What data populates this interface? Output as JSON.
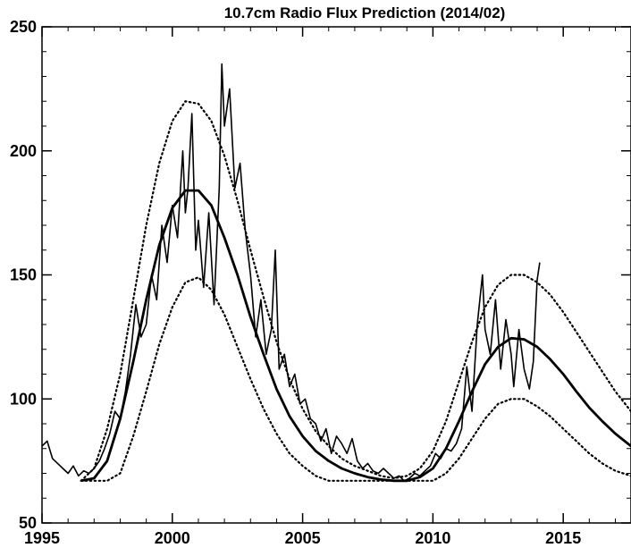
{
  "chart_data": {
    "type": "line",
    "title": "10.7cm Radio Flux Prediction (2014/02)",
    "xlabel": "",
    "ylabel": "",
    "xlim": [
      1995,
      2017.6
    ],
    "ylim": [
      50,
      250
    ],
    "x_ticks": [
      1995,
      2000,
      2005,
      2010,
      2015
    ],
    "y_ticks": [
      50,
      100,
      150,
      200,
      250
    ],
    "x_minor_step": 1,
    "y_minor_step": 10,
    "grid": false,
    "legend": "none",
    "series": [
      {
        "style": "solid-thin",
        "note": "observed monthly values",
        "points": [
          [
            1995.0,
            81
          ],
          [
            1995.2,
            83
          ],
          [
            1995.4,
            76
          ],
          [
            1995.6,
            74
          ],
          [
            1995.8,
            72
          ],
          [
            1996.0,
            70
          ],
          [
            1996.2,
            73
          ],
          [
            1996.4,
            69
          ],
          [
            1996.6,
            71
          ],
          [
            1996.8,
            70
          ],
          [
            1997.0,
            72
          ],
          [
            1997.2,
            75
          ],
          [
            1997.4,
            80
          ],
          [
            1997.6,
            86
          ],
          [
            1997.8,
            95
          ],
          [
            1998.0,
            92
          ],
          [
            1998.2,
            103
          ],
          [
            1998.4,
            118
          ],
          [
            1998.6,
            138
          ],
          [
            1998.8,
            125
          ],
          [
            1999.0,
            130
          ],
          [
            1999.2,
            150
          ],
          [
            1999.4,
            140
          ],
          [
            1999.6,
            170
          ],
          [
            1999.8,
            155
          ],
          [
            2000.0,
            178
          ],
          [
            2000.2,
            165
          ],
          [
            2000.4,
            200
          ],
          [
            2000.5,
            175
          ],
          [
            2000.6,
            185
          ],
          [
            2000.75,
            215
          ],
          [
            2000.9,
            160
          ],
          [
            2001.0,
            172
          ],
          [
            2001.2,
            145
          ],
          [
            2001.4,
            175
          ],
          [
            2001.6,
            138
          ],
          [
            2001.8,
            185
          ],
          [
            2001.9,
            235
          ],
          [
            2002.0,
            210
          ],
          [
            2002.2,
            225
          ],
          [
            2002.4,
            185
          ],
          [
            2002.6,
            195
          ],
          [
            2002.8,
            168
          ],
          [
            2003.0,
            150
          ],
          [
            2003.2,
            125
          ],
          [
            2003.4,
            140
          ],
          [
            2003.6,
            118
          ],
          [
            2003.8,
            128
          ],
          [
            2003.95,
            160
          ],
          [
            2004.1,
            112
          ],
          [
            2004.3,
            118
          ],
          [
            2004.5,
            105
          ],
          [
            2004.7,
            110
          ],
          [
            2004.9,
            98
          ],
          [
            2005.1,
            100
          ],
          [
            2005.3,
            92
          ],
          [
            2005.5,
            90
          ],
          [
            2005.7,
            83
          ],
          [
            2005.9,
            88
          ],
          [
            2006.1,
            78
          ],
          [
            2006.3,
            85
          ],
          [
            2006.5,
            82
          ],
          [
            2006.7,
            78
          ],
          [
            2006.9,
            84
          ],
          [
            2007.1,
            75
          ],
          [
            2007.3,
            72
          ],
          [
            2007.5,
            74
          ],
          [
            2007.7,
            71
          ],
          [
            2007.9,
            70
          ],
          [
            2008.1,
            72
          ],
          [
            2008.3,
            70
          ],
          [
            2008.5,
            68
          ],
          [
            2008.7,
            69
          ],
          [
            2008.9,
            67
          ],
          [
            2009.1,
            68
          ],
          [
            2009.3,
            70
          ],
          [
            2009.5,
            69
          ],
          [
            2009.7,
            71
          ],
          [
            2009.9,
            73
          ],
          [
            2010.1,
            78
          ],
          [
            2010.3,
            76
          ],
          [
            2010.5,
            80
          ],
          [
            2010.7,
            79
          ],
          [
            2010.9,
            82
          ],
          [
            2011.1,
            88
          ],
          [
            2011.3,
            113
          ],
          [
            2011.5,
            95
          ],
          [
            2011.7,
            130
          ],
          [
            2011.9,
            150
          ],
          [
            2012.0,
            128
          ],
          [
            2012.2,
            118
          ],
          [
            2012.4,
            140
          ],
          [
            2012.6,
            112
          ],
          [
            2012.8,
            132
          ],
          [
            2013.0,
            118
          ],
          [
            2013.1,
            105
          ],
          [
            2013.3,
            128
          ],
          [
            2013.5,
            112
          ],
          [
            2013.7,
            104
          ],
          [
            2013.85,
            115
          ],
          [
            2014.0,
            148
          ],
          [
            2014.1,
            155
          ]
        ]
      },
      {
        "style": "solid-thick",
        "note": "predicted smoothed curve",
        "points": [
          [
            1996.5,
            67
          ],
          [
            1997.0,
            68
          ],
          [
            1997.5,
            75
          ],
          [
            1998.0,
            92
          ],
          [
            1998.5,
            115
          ],
          [
            1999.0,
            140
          ],
          [
            1999.5,
            162
          ],
          [
            2000.0,
            177
          ],
          [
            2000.5,
            184
          ],
          [
            2001.0,
            184
          ],
          [
            2001.5,
            178
          ],
          [
            2002.0,
            165
          ],
          [
            2002.5,
            150
          ],
          [
            2003.0,
            133
          ],
          [
            2003.5,
            118
          ],
          [
            2004.0,
            104
          ],
          [
            2004.5,
            93
          ],
          [
            2005.0,
            85
          ],
          [
            2005.5,
            79
          ],
          [
            2006.0,
            75
          ],
          [
            2006.5,
            72
          ],
          [
            2007.0,
            70
          ],
          [
            2007.5,
            68.5
          ],
          [
            2008.0,
            67.5
          ],
          [
            2008.5,
            67
          ],
          [
            2009.0,
            67
          ],
          [
            2009.5,
            68.5
          ],
          [
            2010.0,
            72
          ],
          [
            2010.5,
            80
          ],
          [
            2011.0,
            91
          ],
          [
            2011.5,
            103
          ],
          [
            2012.0,
            114
          ],
          [
            2012.5,
            121
          ],
          [
            2013.0,
            124.5
          ],
          [
            2013.5,
            124
          ],
          [
            2014.0,
            121
          ],
          [
            2014.5,
            116
          ],
          [
            2015.0,
            110
          ],
          [
            2015.5,
            103
          ],
          [
            2016.0,
            96.5
          ],
          [
            2016.5,
            91
          ],
          [
            2017.0,
            86
          ],
          [
            2017.6,
            81
          ]
        ]
      },
      {
        "style": "dotted",
        "note": "upper bound",
        "points": [
          [
            1996.5,
            67
          ],
          [
            1997.0,
            72
          ],
          [
            1997.5,
            88
          ],
          [
            1998.0,
            110
          ],
          [
            1998.5,
            140
          ],
          [
            1999.0,
            170
          ],
          [
            1999.5,
            195
          ],
          [
            2000.0,
            212
          ],
          [
            2000.5,
            220
          ],
          [
            2001.0,
            219
          ],
          [
            2001.5,
            212
          ],
          [
            2002.0,
            198
          ],
          [
            2002.5,
            180
          ],
          [
            2003.0,
            160
          ],
          [
            2003.5,
            141
          ],
          [
            2004.0,
            123
          ],
          [
            2004.5,
            108
          ],
          [
            2005.0,
            96
          ],
          [
            2005.5,
            87
          ],
          [
            2006.0,
            81
          ],
          [
            2006.5,
            76
          ],
          [
            2007.0,
            73
          ],
          [
            2007.5,
            71
          ],
          [
            2008.0,
            69
          ],
          [
            2008.5,
            68
          ],
          [
            2009.0,
            69
          ],
          [
            2009.5,
            72
          ],
          [
            2010.0,
            79
          ],
          [
            2010.5,
            91
          ],
          [
            2011.0,
            107
          ],
          [
            2011.5,
            123
          ],
          [
            2012.0,
            137
          ],
          [
            2012.5,
            146
          ],
          [
            2013.0,
            150
          ],
          [
            2013.5,
            150
          ],
          [
            2014.0,
            147
          ],
          [
            2014.5,
            142
          ],
          [
            2015.0,
            135
          ],
          [
            2015.5,
            127
          ],
          [
            2016.0,
            119
          ],
          [
            2016.5,
            111
          ],
          [
            2017.0,
            103
          ],
          [
            2017.6,
            95
          ]
        ]
      },
      {
        "style": "dotted",
        "note": "lower bound",
        "points": [
          [
            1996.5,
            67
          ],
          [
            1997.0,
            67
          ],
          [
            1997.5,
            67
          ],
          [
            1998.0,
            70
          ],
          [
            1998.5,
            85
          ],
          [
            1999.0,
            103
          ],
          [
            1999.5,
            122
          ],
          [
            2000.0,
            137
          ],
          [
            2000.5,
            147
          ],
          [
            2001.0,
            149
          ],
          [
            2001.5,
            144
          ],
          [
            2002.0,
            134
          ],
          [
            2002.5,
            121
          ],
          [
            2003.0,
            108
          ],
          [
            2003.5,
            96
          ],
          [
            2004.0,
            86
          ],
          [
            2004.5,
            78
          ],
          [
            2005.0,
            73
          ],
          [
            2005.5,
            69
          ],
          [
            2006.0,
            67
          ],
          [
            2006.5,
            67
          ],
          [
            2007.0,
            67
          ],
          [
            2007.5,
            67
          ],
          [
            2008.0,
            67
          ],
          [
            2008.5,
            67
          ],
          [
            2009.0,
            67
          ],
          [
            2009.5,
            67
          ],
          [
            2010.0,
            67
          ],
          [
            2010.5,
            70
          ],
          [
            2011.0,
            76
          ],
          [
            2011.5,
            84
          ],
          [
            2012.0,
            92
          ],
          [
            2012.5,
            98
          ],
          [
            2013.0,
            100
          ],
          [
            2013.5,
            100
          ],
          [
            2014.0,
            97
          ],
          [
            2014.5,
            93
          ],
          [
            2015.0,
            88
          ],
          [
            2015.5,
            83
          ],
          [
            2016.0,
            78
          ],
          [
            2016.5,
            74
          ],
          [
            2017.0,
            71
          ],
          [
            2017.6,
            69
          ]
        ]
      }
    ]
  }
}
